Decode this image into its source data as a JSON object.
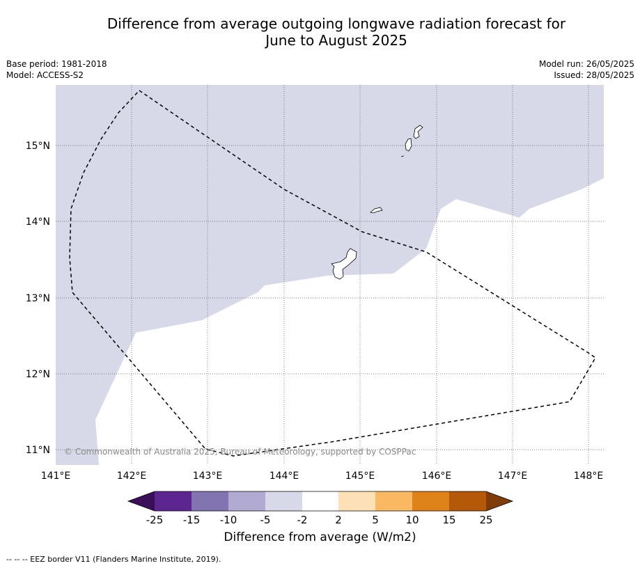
{
  "title_line1": "Difference from average outgoing longwave radiation forecast for",
  "title_line2": "June to August 2025",
  "meta_left": {
    "base_period": "Base period: 1981-2018",
    "model": "Model: ACCESS-S2"
  },
  "meta_right": {
    "model_run": "Model run: 26/05/2025",
    "issued": "Issued: 28/05/2025"
  },
  "map": {
    "lon_ticks": [
      "141°E",
      "142°E",
      "143°E",
      "144°E",
      "145°E",
      "146°E",
      "147°E",
      "148°E"
    ],
    "lat_ticks": [
      "15°N",
      "14°N",
      "13°N",
      "12°N",
      "11°N"
    ],
    "copyright": "© Commonwealth of Australia 2025, Bureau of Meteorology, supported by COSPPac",
    "shaded_category": "-5 to -2",
    "colors": {
      "shade": "#d7d8e8",
      "coast": "#000000"
    }
  },
  "colorbar": {
    "ticks": [
      "-25",
      "-15",
      "-10",
      "-5",
      "-2",
      "2",
      "5",
      "10",
      "15",
      "25"
    ],
    "colors": [
      "#3b0f57",
      "#5c2590",
      "#8274b1",
      "#b1abd3",
      "#d7d8e8",
      "#ffffff",
      "#fde0b5",
      "#fbb862",
      "#e0821a",
      "#b35908",
      "#7f3b08"
    ],
    "label": "Difference from average (W/m2)"
  },
  "footnote": "--  --  -- EEZ border V11 (Flanders Marine Institute, 2019)."
}
